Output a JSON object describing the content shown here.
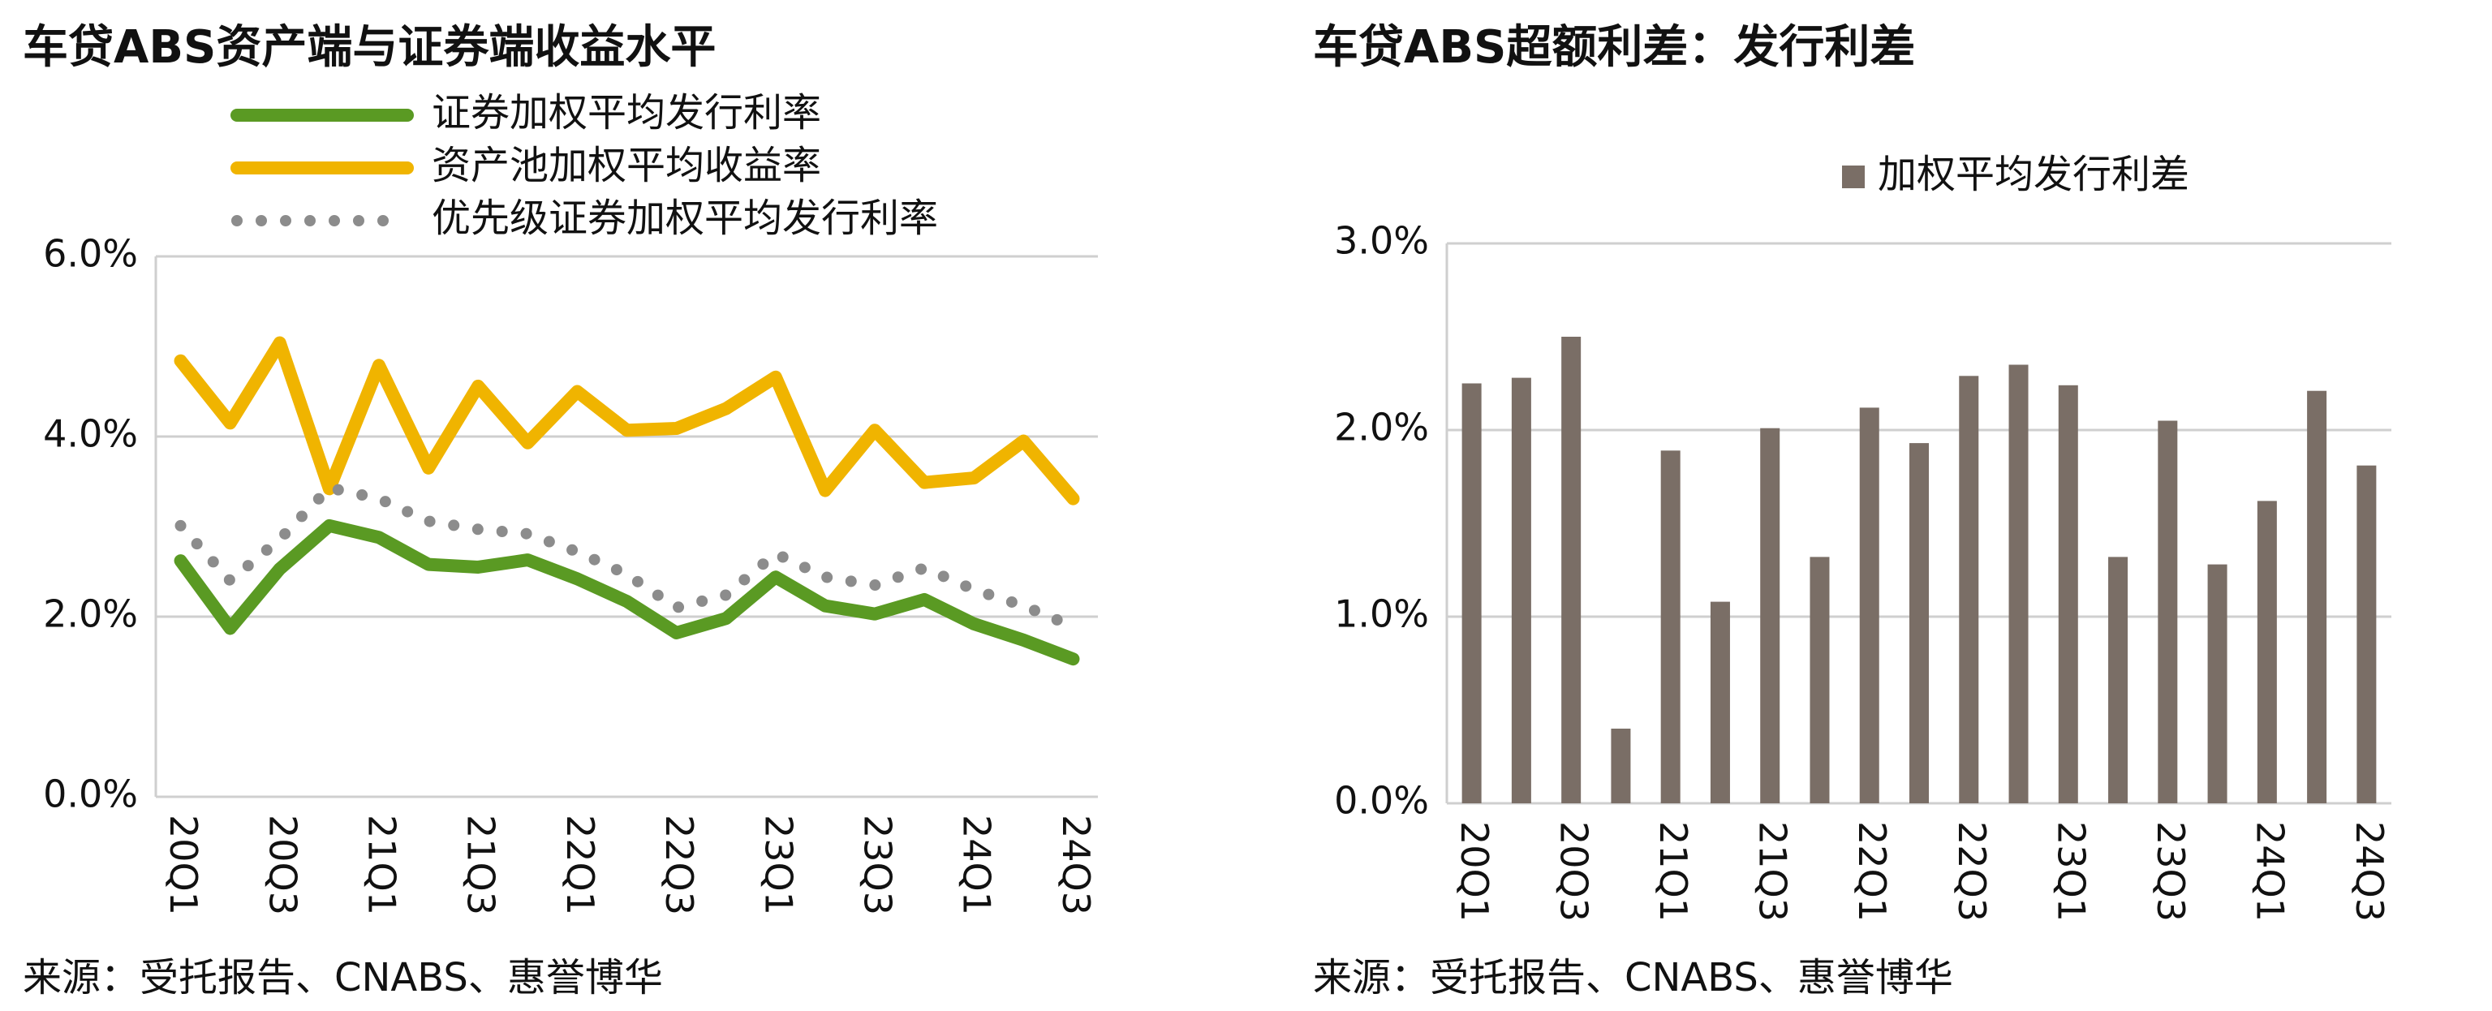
{
  "chart_data": [
    {
      "type": "line",
      "title": "车贷ABS资产端与证券端收益水平",
      "categories": [
        "20Q1",
        null,
        "20Q3",
        null,
        "21Q1",
        null,
        "21Q3",
        null,
        "22Q1",
        null,
        "22Q3",
        null,
        "23Q1",
        null,
        "23Q3",
        null,
        "24Q1",
        null,
        "24Q3"
      ],
      "series": [
        {
          "name": "证券加权平均发行利率",
          "color": "#5a9a23",
          "line_style": "solid",
          "values": [
            2.62,
            1.87,
            2.53,
            3.01,
            2.88,
            2.58,
            2.55,
            2.63,
            2.42,
            2.17,
            1.82,
            1.98,
            2.44,
            2.12,
            2.03,
            2.19,
            1.92,
            1.74,
            1.53
          ]
        },
        {
          "name": "资产池加权平均收益率",
          "color": "#f0b400",
          "line_style": "solid",
          "values": [
            4.84,
            4.15,
            5.04,
            3.42,
            4.79,
            3.65,
            4.56,
            3.93,
            4.5,
            4.07,
            4.09,
            4.31,
            4.66,
            3.4,
            4.07,
            3.49,
            3.54,
            3.95,
            3.31
          ]
        },
        {
          "name": "优先级证券加权平均发行利率",
          "color": "#8c8c8c",
          "line_style": "dotted",
          "values": [
            3.01,
            2.4,
            2.86,
            3.43,
            3.31,
            3.06,
            2.97,
            2.92,
            2.72,
            2.47,
            2.1,
            2.24,
            2.7,
            2.44,
            2.35,
            2.54,
            2.3,
            2.12,
            1.89
          ]
        }
      ],
      "ylim": [
        0,
        6
      ],
      "yticks": [
        {
          "value": 0,
          "label": "0.0%"
        },
        {
          "value": 2,
          "label": "2.0%"
        },
        {
          "value": 4,
          "label": "4.0%"
        },
        {
          "value": 6,
          "label": "6.0%"
        }
      ],
      "grid": true,
      "legend": "top",
      "source": "来源：受托报告、CNABS、惠誉博华"
    },
    {
      "type": "bar",
      "title": "车贷ABS超额利差：发行利差",
      "categories": [
        "20Q1",
        null,
        "20Q3",
        null,
        "21Q1",
        null,
        "21Q3",
        null,
        "22Q1",
        null,
        "22Q3",
        null,
        "23Q1",
        null,
        "23Q3",
        null,
        "24Q1",
        null,
        "24Q3"
      ],
      "series": [
        {
          "name": "加权平均发行利差",
          "color": "#7a6e66",
          "values": [
            2.25,
            2.28,
            2.5,
            0.4,
            1.89,
            1.08,
            2.01,
            1.32,
            2.12,
            1.93,
            2.29,
            2.35,
            2.24,
            1.32,
            2.05,
            1.28,
            1.62,
            2.21,
            1.81
          ]
        }
      ],
      "ylim": [
        0,
        3
      ],
      "yticks": [
        {
          "value": 0,
          "label": "0.0%"
        },
        {
          "value": 1,
          "label": "1.0%"
        },
        {
          "value": 2,
          "label": "2.0%"
        },
        {
          "value": 3,
          "label": "3.0%"
        }
      ],
      "grid": true,
      "legend": "top",
      "source": "来源：受托报告、CNABS、惠誉博华"
    }
  ]
}
